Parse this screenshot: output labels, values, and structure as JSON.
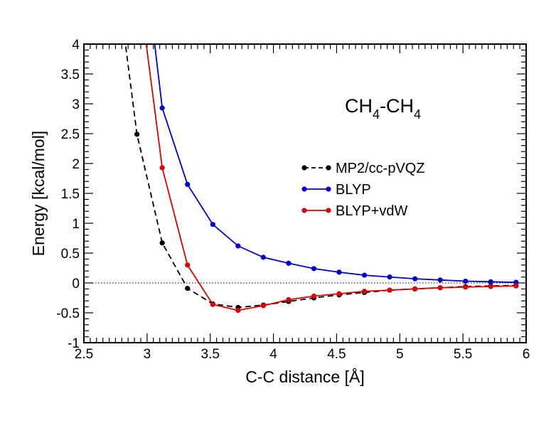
{
  "chart_data": {
    "type": "line",
    "title": "",
    "xlabel": "C-C distance [Å]",
    "ylabel": "Energy [kcal/mol]",
    "xlim": [
      2.5,
      6
    ],
    "ylim": [
      -1,
      4
    ],
    "xticks": [
      2.5,
      3,
      3.5,
      4,
      4.5,
      5,
      5.5,
      6
    ],
    "xtick_labels": [
      "2.5",
      "3",
      "3.5",
      "4",
      "4.5",
      "5",
      "5.5",
      "6"
    ],
    "yticks": [
      -1,
      -0.5,
      0,
      0.5,
      1,
      1.5,
      2,
      2.5,
      3,
      3.5,
      4
    ],
    "ytick_labels": [
      "-1",
      "-0.5",
      "0",
      "0.5",
      "1",
      "1.5",
      "2",
      "2.5",
      "3",
      "3.5",
      "4"
    ],
    "grid": false,
    "zero_line": true,
    "legend_position": "right",
    "annotation": {
      "main": "CH",
      "sub1": "4",
      "dash": "-CH",
      "sub2": "4"
    },
    "series": [
      {
        "name": "MP2/cc-pVQZ",
        "color": "#000000",
        "style": "dashed",
        "x": [
          2.72,
          2.92,
          3.12,
          3.32,
          3.52,
          3.72,
          3.92,
          4.12,
          4.32,
          4.52,
          4.72,
          4.92,
          5.12,
          5.32,
          5.52,
          5.72,
          5.92
        ],
        "y": [
          5.8,
          2.49,
          0.67,
          -0.09,
          -0.35,
          -0.41,
          -0.37,
          -0.31,
          -0.25,
          -0.2,
          -0.16,
          -0.12,
          -0.1,
          -0.08,
          -0.06,
          -0.05,
          -0.04
        ],
        "markers_from": 1
      },
      {
        "name": "BLYP",
        "color": "#0000cc",
        "style": "solid",
        "x": [
          2.92,
          3.12,
          3.32,
          3.52,
          3.72,
          3.92,
          4.12,
          4.32,
          4.52,
          4.72,
          4.92,
          5.12,
          5.32,
          5.52,
          5.72,
          5.92
        ],
        "y": [
          6.5,
          2.93,
          1.65,
          0.98,
          0.62,
          0.43,
          0.33,
          0.24,
          0.18,
          0.13,
          0.1,
          0.07,
          0.05,
          0.03,
          0.02,
          0.01
        ],
        "markers_from": 1
      },
      {
        "name": "BLYP+vdW",
        "color": "#dd0000",
        "style": "solid",
        "x": [
          2.92,
          3.12,
          3.32,
          3.52,
          3.72,
          3.92,
          4.12,
          4.32,
          4.52,
          4.72,
          4.92,
          5.12,
          5.32,
          5.52,
          5.72,
          5.92
        ],
        "y": [
          5.2,
          1.93,
          0.3,
          -0.36,
          -0.46,
          -0.38,
          -0.28,
          -0.22,
          -0.18,
          -0.14,
          -0.12,
          -0.1,
          -0.08,
          -0.07,
          -0.06,
          -0.05
        ],
        "markers_from": 1
      }
    ]
  }
}
